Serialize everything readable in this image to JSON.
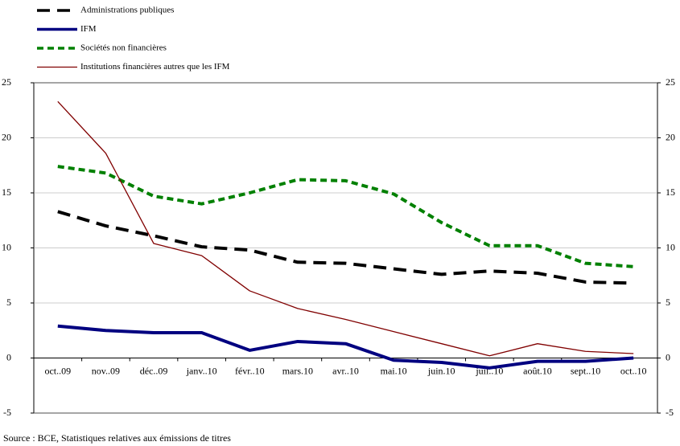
{
  "chart_data": {
    "type": "line",
    "categories": [
      "oct..09",
      "nov..09",
      "déc..09",
      "janv..10",
      "févr..10",
      "mars.10",
      "avr..10",
      "mai.10",
      "juin.10",
      "juil..10",
      "août.10",
      "sept..10",
      "oct..10"
    ],
    "series": [
      {
        "name": "Administrations publiques",
        "color": "#000000",
        "values": [
          13.3,
          12.0,
          11.1,
          10.1,
          9.8,
          8.7,
          8.6,
          8.1,
          7.6,
          7.9,
          7.7,
          6.9,
          6.8
        ]
      },
      {
        "name": "IFM",
        "color": "#000080",
        "values": [
          2.9,
          2.5,
          2.3,
          2.3,
          0.7,
          1.5,
          1.3,
          -0.2,
          -0.4,
          -0.9,
          -0.3,
          -0.3,
          0.0
        ]
      },
      {
        "name": "Sociétés non financières",
        "color": "#008000",
        "values": [
          17.4,
          16.8,
          14.7,
          14.0,
          15.0,
          16.2,
          16.1,
          14.9,
          12.3,
          10.2,
          10.2,
          8.6,
          8.3
        ]
      },
      {
        "name": "Institutions financières autres que les IFM",
        "color": "#800000",
        "values": [
          23.3,
          18.6,
          10.4,
          9.3,
          6.1,
          4.5,
          3.5,
          2.4,
          1.3,
          0.2,
          1.3,
          0.6,
          0.4
        ]
      }
    ],
    "ylim": [
      -5,
      25
    ],
    "yticks": [
      -5,
      0,
      5,
      10,
      15,
      20,
      25
    ],
    "y2lim": [
      -5,
      25
    ],
    "y2ticks": [
      -5,
      0,
      5,
      10,
      15,
      20,
      25
    ],
    "grid": true,
    "legend": "top-left",
    "source": "Source : BCE, Statistiques relatives aux émissions de titres"
  }
}
